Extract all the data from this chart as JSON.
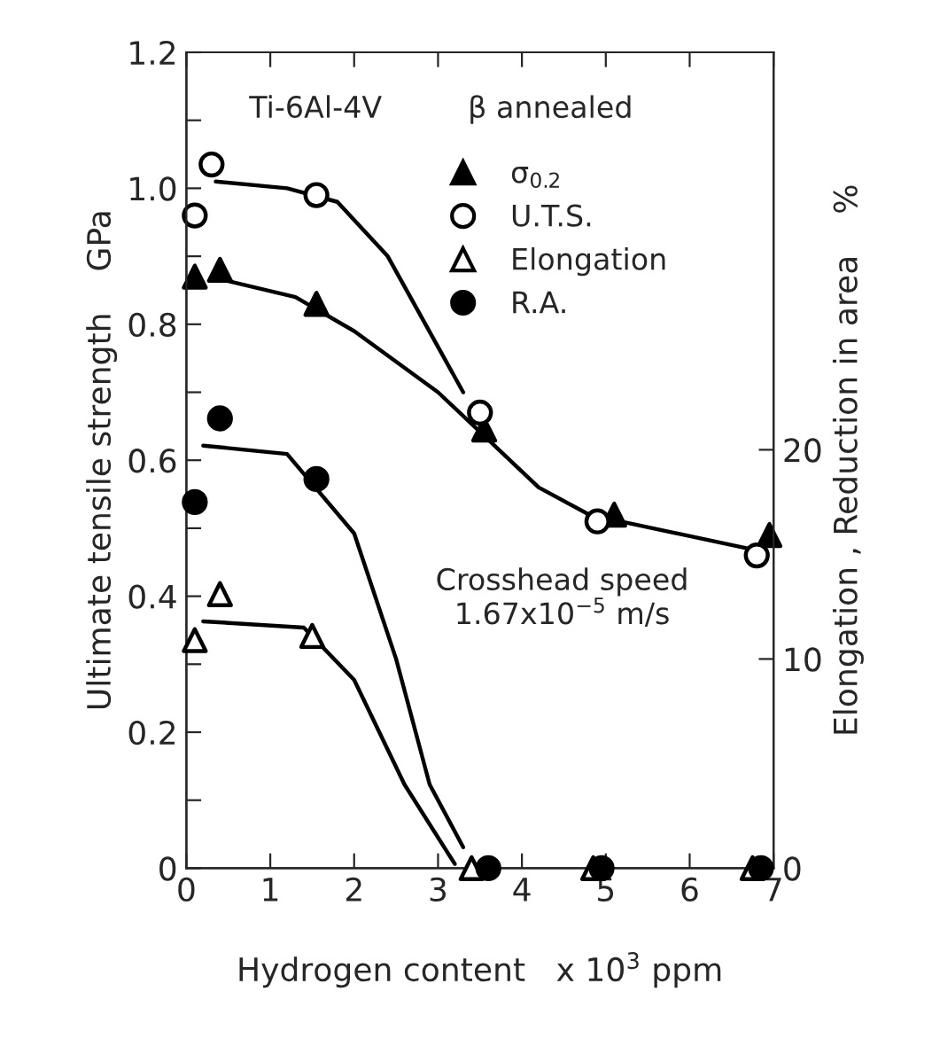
{
  "chart_data": {
    "type": "scatter",
    "xlabel": "Hydrogen content   x 10$^{3}$ ppm",
    "ylabel": "Ultimate tensile strength    GPa",
    "y2label": "Elongation , Reduction in area    %",
    "annotations": [
      "Ti-6Al-4V",
      "β annealed",
      "Crosshead speed\n1.67x10$^{−5}$ m/s"
    ],
    "xlim": [
      0,
      7
    ],
    "xticks": [
      0,
      1,
      2,
      3,
      4,
      5,
      6,
      7
    ],
    "ylim": [
      0,
      1.2
    ],
    "yticks": [
      0,
      {
        "value": 0.1,
        "label": null
      },
      0.2,
      {
        "value": 0.3,
        "label": null
      },
      0.4,
      {
        "value": 0.5,
        "label": null
      },
      0.6,
      {
        "value": 0.7,
        "label": null
      },
      0.8,
      {
        "value": 0.9,
        "label": null
      },
      {
        "value": 1.0,
        "label": "1.0"
      },
      {
        "value": 1.1,
        "label": null
      },
      1.2
    ],
    "y2lim": [
      0,
      39
    ],
    "y2ticks": [
      0,
      10,
      20
    ],
    "grid": false,
    "legend": "top",
    "series": [
      {
        "name": "σ$_{0.2}$",
        "color": "#000000",
        "marker": "triangle",
        "x": [
          0.1,
          0.4,
          1.55,
          3.55,
          5.1,
          6.95
        ],
        "values": [
          0.87,
          0.88,
          0.83,
          0.645,
          0.52,
          0.49
        ]
      },
      {
        "name": "U.T.S.",
        "color": "#ffffff",
        "marker": "circle",
        "x": [
          0.1,
          0.3,
          1.55,
          3.5,
          4.9,
          6.8
        ],
        "values": [
          0.96,
          1.035,
          0.99,
          0.67,
          0.51,
          0.46
        ]
      },
      {
        "name": "Elongation",
        "color": "#ffffff",
        "marker": "triangle",
        "axis": "y2",
        "x": [
          0.1,
          0.4,
          1.5,
          3.4,
          4.85,
          6.75
        ],
        "values": [
          10.9,
          13.1,
          11.1,
          0,
          0,
          0
        ]
      },
      {
        "name": "R.A.",
        "color": "#000000",
        "marker": "circle",
        "axis": "y2",
        "x": [
          0.1,
          0.4,
          1.55,
          3.6,
          4.95,
          6.85
        ],
        "values": [
          17.5,
          21.5,
          18.6,
          0,
          0,
          0
        ]
      },
      {
        "type": "line",
        "color": "#000000",
        "x": [
          0.35,
          1.2,
          1.8,
          2.4,
          3.3
        ],
        "values": [
          1.01,
          1.0,
          0.98,
          0.9,
          0.7
        ]
      },
      {
        "type": "line",
        "color": "#000000",
        "x": [
          0.45,
          1.3,
          2.0,
          3.0,
          3.6,
          4.2,
          4.8,
          6.7
        ],
        "values": [
          0.865,
          0.84,
          0.79,
          0.7,
          0.63,
          0.56,
          0.52,
          0.47
        ]
      },
      {
        "type": "line",
        "color": "#000000",
        "axis": "y2",
        "x": [
          0.2,
          1.4,
          2.0,
          2.6,
          3.2
        ],
        "values": [
          11.8,
          11.5,
          9,
          4,
          0.2
        ]
      },
      {
        "type": "line",
        "color": "#000000",
        "axis": "y2",
        "x": [
          0.2,
          1.2,
          2.0,
          2.5,
          2.9,
          3.3
        ],
        "values": [
          20.2,
          19.8,
          16,
          10,
          4,
          1
        ]
      }
    ]
  }
}
